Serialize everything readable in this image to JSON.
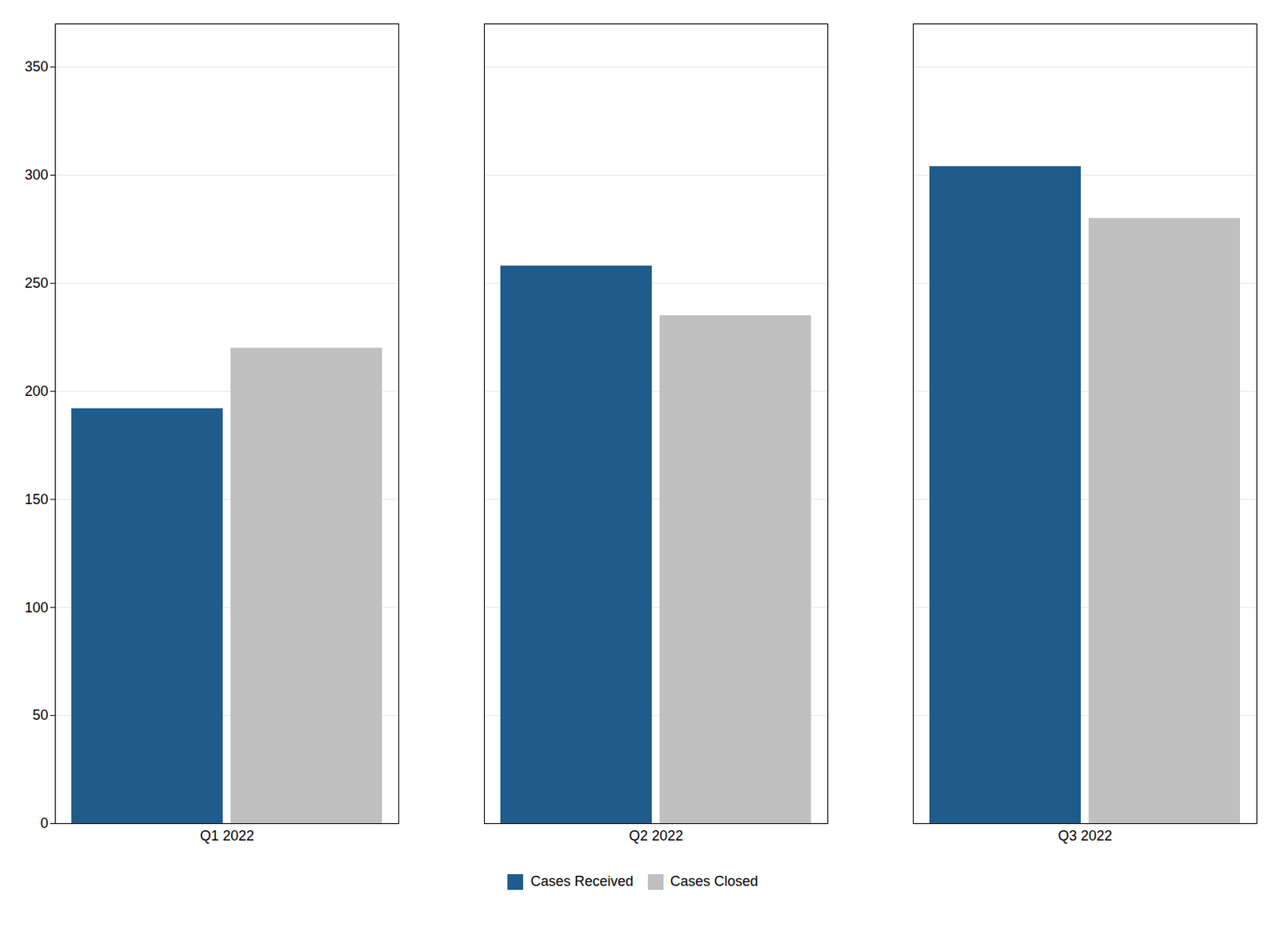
{
  "chart_data": {
    "type": "bar",
    "categories": [
      "Q1 2022",
      "Q2 2022",
      "Q3 2022"
    ],
    "series": [
      {
        "name": "Cases Received",
        "color": "#1F5C8B",
        "values": [
          192,
          258,
          304
        ]
      },
      {
        "name": "Cases Closed",
        "color": "#C0C0C0",
        "values": [
          220,
          235,
          280
        ]
      }
    ],
    "ylim": [
      0,
      370
    ],
    "yticks": [
      0,
      50,
      100,
      150,
      200,
      250,
      300,
      350
    ],
    "grid": true,
    "legend": "bottom"
  }
}
